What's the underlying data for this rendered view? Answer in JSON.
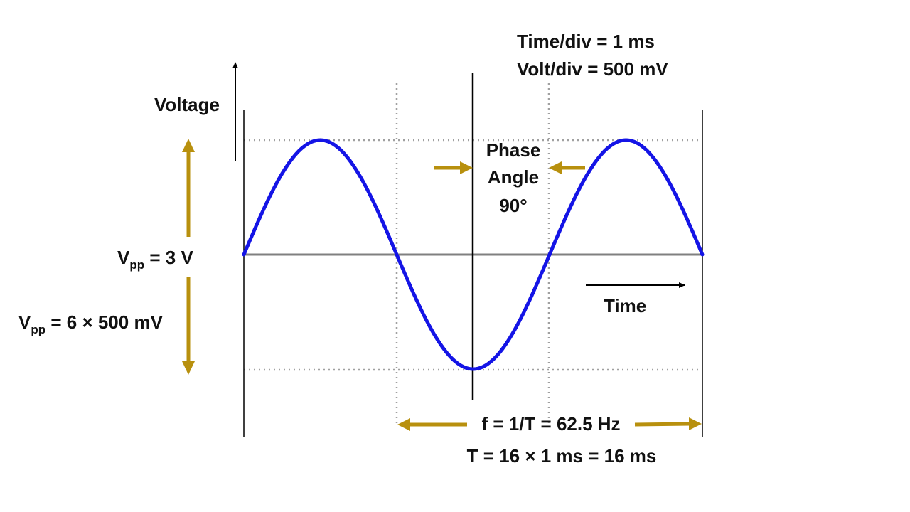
{
  "colors": {
    "wave": "#1414e6",
    "arrow": "#b8900e",
    "axis": "#000000",
    "baseline": "#808080",
    "grid": "#a0a0a0"
  },
  "wave": {
    "amplitude_divisions": 3,
    "period_divisions": 16,
    "cycles_shown": 1.5
  },
  "labels": {
    "time_div": "Time/div = 1 ms",
    "volt_div": "Volt/div = 500 mV",
    "voltage": "Voltage",
    "time": "Time",
    "phase_line1": "Phase",
    "phase_line2": "Angle",
    "phase_line3": "90°",
    "vpp1_v": "V",
    "vpp1_sub": "pp",
    "vpp1_rest": " = 3 V",
    "vpp2_v": "V",
    "vpp2_sub": "pp",
    "vpp2_rest": " = 6 × 500 mV",
    "freq": "f = 1/T = 62.5 Hz",
    "period": "T = 16 × 1 ms = 16 ms"
  }
}
